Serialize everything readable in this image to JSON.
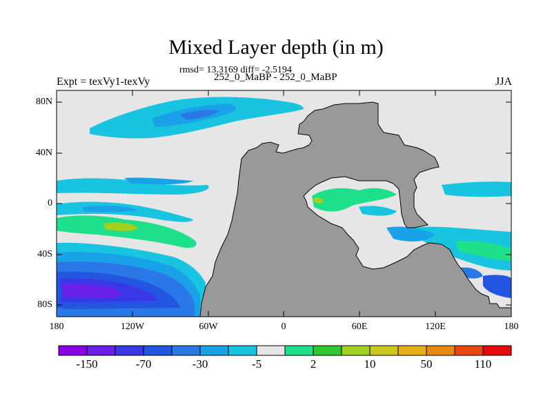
{
  "header": {
    "title": "Mixed Layer depth (in m)",
    "stats": "rmsd= 13.3169 diff= -2.5194",
    "experiment": "Expt = texVy1-texVy",
    "comparison": "252_0_MaBP - 252_0_MaBP",
    "season": "JJA"
  },
  "axes": {
    "lat_ticks": [
      "80N",
      "40N",
      "0",
      "40S",
      "80S"
    ],
    "lon_ticks": [
      "180",
      "120W",
      "60W",
      "0",
      "60E",
      "120E",
      "180"
    ]
  },
  "colorbar": {
    "colors": [
      "#8a00e6",
      "#6a1fe8",
      "#3a38e6",
      "#2455e0",
      "#2a78e8",
      "#1aa2e8",
      "#18c4e0",
      "#e6e6e6",
      "#1ee08a",
      "#30c830",
      "#a0d020",
      "#c8c820",
      "#e8b018",
      "#e88a10",
      "#e84810",
      "#e80a0a"
    ],
    "labels": [
      "-150",
      "-70",
      "-30",
      "-5",
      "2",
      "10",
      "50",
      "110"
    ]
  },
  "colors": {
    "land": "#999999",
    "ocean_neutral": "#e6e6e6"
  }
}
